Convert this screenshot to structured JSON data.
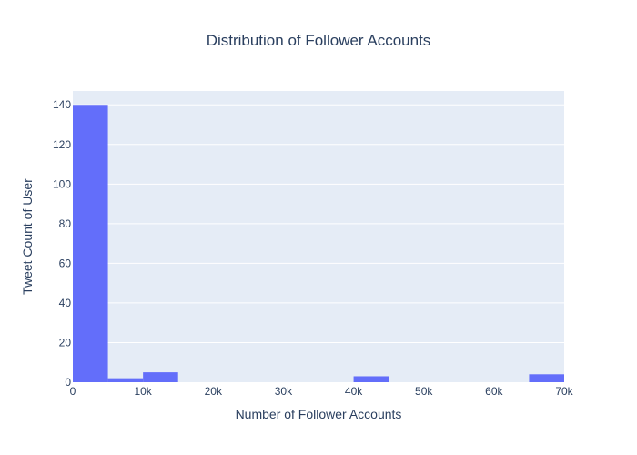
{
  "chart_data": {
    "type": "bar",
    "title": "Distribution of Follower Accounts",
    "xlabel": "Number of Follower Accounts",
    "ylabel": "Tweet Count of User",
    "xlim": [
      0,
      70000
    ],
    "ylim": [
      0,
      147
    ],
    "grid": true,
    "legend": "none",
    "colors": {
      "bar": "#636efa",
      "plot_bg": "#e5ecf6",
      "grid": "#ffffff",
      "text": "#2a3f5f"
    },
    "x_ticks": [
      {
        "value": 0,
        "label": "0"
      },
      {
        "value": 10000,
        "label": "10k"
      },
      {
        "value": 20000,
        "label": "20k"
      },
      {
        "value": 30000,
        "label": "30k"
      },
      {
        "value": 40000,
        "label": "40k"
      },
      {
        "value": 50000,
        "label": "50k"
      },
      {
        "value": 60000,
        "label": "60k"
      },
      {
        "value": 70000,
        "label": "70k"
      }
    ],
    "y_ticks": [
      {
        "value": 0,
        "label": "0"
      },
      {
        "value": 20,
        "label": "20"
      },
      {
        "value": 40,
        "label": "40"
      },
      {
        "value": 60,
        "label": "60"
      },
      {
        "value": 80,
        "label": "80"
      },
      {
        "value": 100,
        "label": "100"
      },
      {
        "value": 120,
        "label": "120"
      },
      {
        "value": 140,
        "label": "140"
      }
    ],
    "bins": [
      {
        "x0": 0,
        "x1": 5000,
        "count": 140
      },
      {
        "x0": 5000,
        "x1": 10000,
        "count": 2
      },
      {
        "x0": 10000,
        "x1": 15000,
        "count": 5
      },
      {
        "x0": 15000,
        "x1": 20000,
        "count": 0
      },
      {
        "x0": 20000,
        "x1": 25000,
        "count": 0
      },
      {
        "x0": 25000,
        "x1": 30000,
        "count": 0
      },
      {
        "x0": 30000,
        "x1": 35000,
        "count": 0
      },
      {
        "x0": 35000,
        "x1": 40000,
        "count": 0
      },
      {
        "x0": 40000,
        "x1": 45000,
        "count": 3
      },
      {
        "x0": 45000,
        "x1": 50000,
        "count": 0
      },
      {
        "x0": 50000,
        "x1": 55000,
        "count": 0
      },
      {
        "x0": 55000,
        "x1": 60000,
        "count": 0
      },
      {
        "x0": 60000,
        "x1": 65000,
        "count": 0
      },
      {
        "x0": 65000,
        "x1": 70000,
        "count": 4
      }
    ]
  }
}
